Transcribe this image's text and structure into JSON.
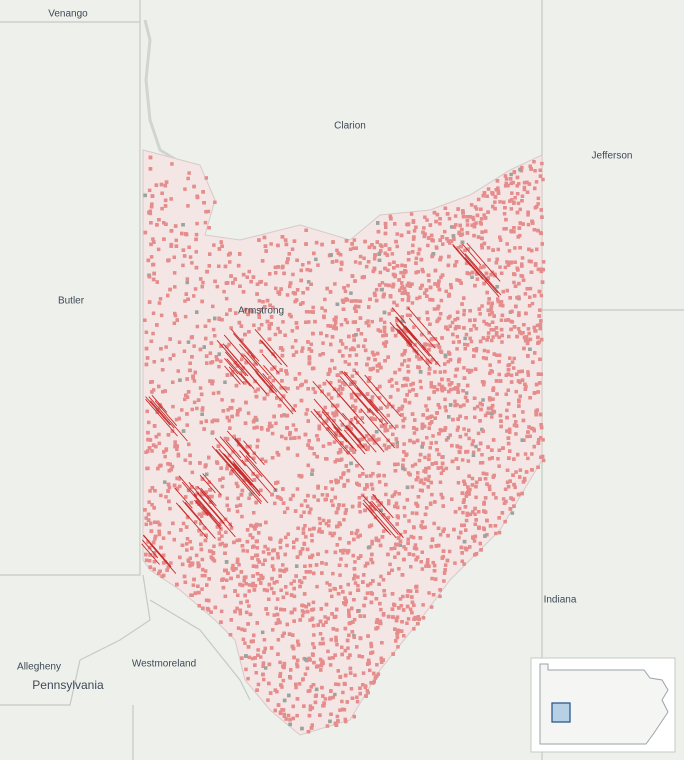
{
  "labels": {
    "venango": "Venango",
    "clarion": "Clarion",
    "jefferson": "Jefferson",
    "butler": "Butler",
    "armstrong": "Armstrong",
    "indiana": "Indiana",
    "allegheny": "Allegheny",
    "westmoreland": "Westmoreland",
    "state": "Pennsylvania"
  }
}
